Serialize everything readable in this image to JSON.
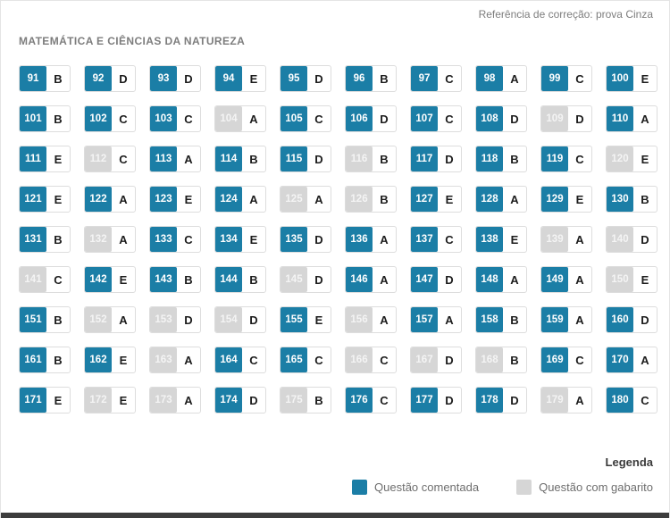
{
  "header": {
    "reference": "Referência de correção: prova Cinza",
    "section_title": "MATEMÁTICA E CIÊNCIAS DA NATUREZA"
  },
  "colors": {
    "commented_badge": "#1b7ea6",
    "gabarito_badge": "#d6d6d6",
    "answer_letter": "#1c1c1c",
    "bottom_bar": "#3c3c3c"
  },
  "legend": {
    "title": "Legenda",
    "items": [
      {
        "label": "Questão comentada",
        "type": "commented"
      },
      {
        "label": "Questão com gabarito",
        "type": "gabarito"
      }
    ]
  },
  "questions": [
    {
      "number": "91",
      "answer": "B",
      "type": "commented"
    },
    {
      "number": "92",
      "answer": "D",
      "type": "commented"
    },
    {
      "number": "93",
      "answer": "D",
      "type": "commented"
    },
    {
      "number": "94",
      "answer": "E",
      "type": "commented"
    },
    {
      "number": "95",
      "answer": "D",
      "type": "commented"
    },
    {
      "number": "96",
      "answer": "B",
      "type": "commented"
    },
    {
      "number": "97",
      "answer": "C",
      "type": "commented"
    },
    {
      "number": "98",
      "answer": "A",
      "type": "commented"
    },
    {
      "number": "99",
      "answer": "C",
      "type": "commented"
    },
    {
      "number": "100",
      "answer": "E",
      "type": "commented"
    },
    {
      "number": "101",
      "answer": "B",
      "type": "commented"
    },
    {
      "number": "102",
      "answer": "C",
      "type": "commented"
    },
    {
      "number": "103",
      "answer": "C",
      "type": "commented"
    },
    {
      "number": "104",
      "answer": "A",
      "type": "gabarito"
    },
    {
      "number": "105",
      "answer": "C",
      "type": "commented"
    },
    {
      "number": "106",
      "answer": "D",
      "type": "commented"
    },
    {
      "number": "107",
      "answer": "C",
      "type": "commented"
    },
    {
      "number": "108",
      "answer": "D",
      "type": "commented"
    },
    {
      "number": "109",
      "answer": "D",
      "type": "gabarito"
    },
    {
      "number": "110",
      "answer": "A",
      "type": "commented"
    },
    {
      "number": "111",
      "answer": "E",
      "type": "commented"
    },
    {
      "number": "112",
      "answer": "C",
      "type": "gabarito"
    },
    {
      "number": "113",
      "answer": "A",
      "type": "commented"
    },
    {
      "number": "114",
      "answer": "B",
      "type": "commented"
    },
    {
      "number": "115",
      "answer": "D",
      "type": "commented"
    },
    {
      "number": "116",
      "answer": "B",
      "type": "gabarito"
    },
    {
      "number": "117",
      "answer": "D",
      "type": "commented"
    },
    {
      "number": "118",
      "answer": "B",
      "type": "commented"
    },
    {
      "number": "119",
      "answer": "C",
      "type": "commented"
    },
    {
      "number": "120",
      "answer": "E",
      "type": "gabarito"
    },
    {
      "number": "121",
      "answer": "E",
      "type": "commented"
    },
    {
      "number": "122",
      "answer": "A",
      "type": "commented"
    },
    {
      "number": "123",
      "answer": "E",
      "type": "commented"
    },
    {
      "number": "124",
      "answer": "A",
      "type": "commented"
    },
    {
      "number": "125",
      "answer": "A",
      "type": "gabarito"
    },
    {
      "number": "126",
      "answer": "B",
      "type": "gabarito"
    },
    {
      "number": "127",
      "answer": "E",
      "type": "commented"
    },
    {
      "number": "128",
      "answer": "A",
      "type": "commented"
    },
    {
      "number": "129",
      "answer": "E",
      "type": "commented"
    },
    {
      "number": "130",
      "answer": "B",
      "type": "commented"
    },
    {
      "number": "131",
      "answer": "B",
      "type": "commented"
    },
    {
      "number": "132",
      "answer": "A",
      "type": "gabarito"
    },
    {
      "number": "133",
      "answer": "C",
      "type": "commented"
    },
    {
      "number": "134",
      "answer": "E",
      "type": "commented"
    },
    {
      "number": "135",
      "answer": "D",
      "type": "commented"
    },
    {
      "number": "136",
      "answer": "A",
      "type": "commented"
    },
    {
      "number": "137",
      "answer": "C",
      "type": "commented"
    },
    {
      "number": "138",
      "answer": "E",
      "type": "commented"
    },
    {
      "number": "139",
      "answer": "A",
      "type": "gabarito"
    },
    {
      "number": "140",
      "answer": "D",
      "type": "gabarito"
    },
    {
      "number": "141",
      "answer": "C",
      "type": "gabarito"
    },
    {
      "number": "142",
      "answer": "E",
      "type": "commented"
    },
    {
      "number": "143",
      "answer": "B",
      "type": "commented"
    },
    {
      "number": "144",
      "answer": "B",
      "type": "commented"
    },
    {
      "number": "145",
      "answer": "D",
      "type": "gabarito"
    },
    {
      "number": "146",
      "answer": "A",
      "type": "commented"
    },
    {
      "number": "147",
      "answer": "D",
      "type": "commented"
    },
    {
      "number": "148",
      "answer": "A",
      "type": "commented"
    },
    {
      "number": "149",
      "answer": "A",
      "type": "commented"
    },
    {
      "number": "150",
      "answer": "E",
      "type": "gabarito"
    },
    {
      "number": "151",
      "answer": "B",
      "type": "commented"
    },
    {
      "number": "152",
      "answer": "A",
      "type": "gabarito"
    },
    {
      "number": "153",
      "answer": "D",
      "type": "gabarito"
    },
    {
      "number": "154",
      "answer": "D",
      "type": "gabarito"
    },
    {
      "number": "155",
      "answer": "E",
      "type": "commented"
    },
    {
      "number": "156",
      "answer": "A",
      "type": "gabarito"
    },
    {
      "number": "157",
      "answer": "A",
      "type": "commented"
    },
    {
      "number": "158",
      "answer": "B",
      "type": "commented"
    },
    {
      "number": "159",
      "answer": "A",
      "type": "commented"
    },
    {
      "number": "160",
      "answer": "D",
      "type": "commented"
    },
    {
      "number": "161",
      "answer": "B",
      "type": "commented"
    },
    {
      "number": "162",
      "answer": "E",
      "type": "commented"
    },
    {
      "number": "163",
      "answer": "A",
      "type": "gabarito"
    },
    {
      "number": "164",
      "answer": "C",
      "type": "commented"
    },
    {
      "number": "165",
      "answer": "C",
      "type": "commented"
    },
    {
      "number": "166",
      "answer": "C",
      "type": "gabarito"
    },
    {
      "number": "167",
      "answer": "D",
      "type": "gabarito"
    },
    {
      "number": "168",
      "answer": "B",
      "type": "gabarito"
    },
    {
      "number": "169",
      "answer": "C",
      "type": "commented"
    },
    {
      "number": "170",
      "answer": "A",
      "type": "commented"
    },
    {
      "number": "171",
      "answer": "E",
      "type": "commented"
    },
    {
      "number": "172",
      "answer": "E",
      "type": "gabarito"
    },
    {
      "number": "173",
      "answer": "A",
      "type": "gabarito"
    },
    {
      "number": "174",
      "answer": "D",
      "type": "commented"
    },
    {
      "number": "175",
      "answer": "B",
      "type": "gabarito"
    },
    {
      "number": "176",
      "answer": "C",
      "type": "commented"
    },
    {
      "number": "177",
      "answer": "D",
      "type": "commented"
    },
    {
      "number": "178",
      "answer": "D",
      "type": "commented"
    },
    {
      "number": "179",
      "answer": "A",
      "type": "gabarito"
    },
    {
      "number": "180",
      "answer": "C",
      "type": "commented"
    }
  ]
}
